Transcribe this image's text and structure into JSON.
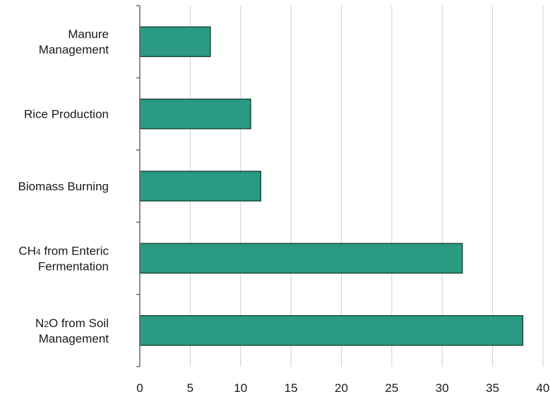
{
  "chart_data": {
    "type": "bar",
    "orientation": "horizontal",
    "categories": [
      [
        "Manure",
        "Management"
      ],
      [
        "Rice Production"
      ],
      [
        "Biomass Burning"
      ],
      [
        "CH4 from Enteric",
        "Fermentation"
      ],
      [
        "N2O from Soil",
        "Management"
      ]
    ],
    "values": [
      7,
      11,
      12,
      32,
      38
    ],
    "xlim": [
      0,
      40
    ],
    "xticks": [
      0,
      5,
      10,
      15,
      20,
      25,
      30,
      35,
      40
    ],
    "grid": true,
    "bar_color": "#2a9a82",
    "title": "",
    "xlabel": "",
    "ylabel": ""
  }
}
